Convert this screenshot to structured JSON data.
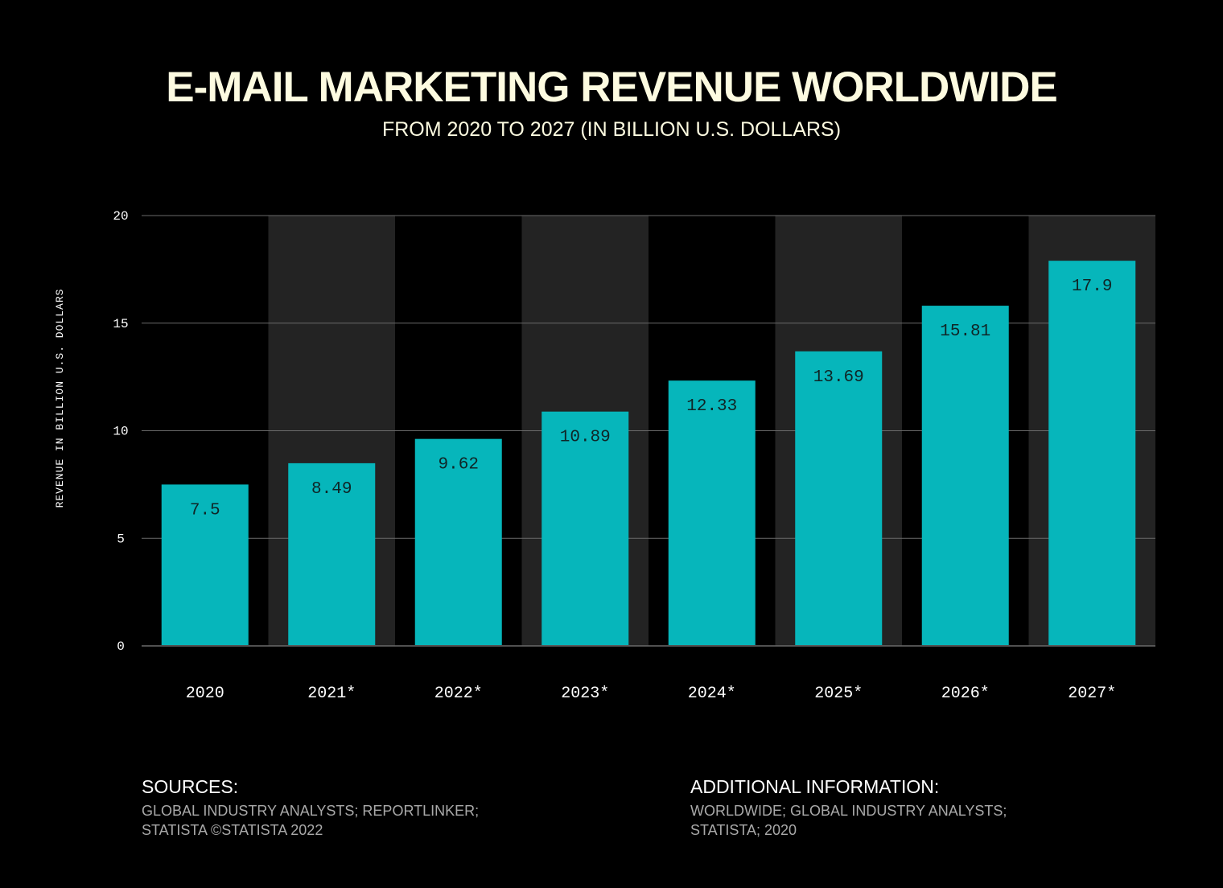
{
  "chart_data": {
    "type": "bar",
    "title": "E-MAIL MARKETING REVENUE WORLDWIDE",
    "subtitle": "FROM 2020 TO 2027 (IN BILLION U.S. DOLLARS)",
    "ylabel": "REVENUE IN BILLION U.S. DOLLARS",
    "xlabel": "",
    "categories": [
      "2020",
      "2021*",
      "2022*",
      "2023*",
      "2024*",
      "2025*",
      "2026*",
      "2027*"
    ],
    "values": [
      7.5,
      8.49,
      9.62,
      10.89,
      12.33,
      13.69,
      15.81,
      17.9
    ],
    "value_labels": [
      "7.5",
      "8.49",
      "9.62",
      "10.89",
      "12.33",
      "13.69",
      "15.81",
      "17.9"
    ],
    "ylim": [
      0,
      20
    ],
    "yticks": [
      0,
      5,
      10,
      15,
      20
    ],
    "grid": true,
    "colors": {
      "bar": "#06b6bb",
      "band": "#232323",
      "grid": "#6a6a6a",
      "background": "#000000",
      "title": "#fdfbe0"
    }
  },
  "footer": {
    "sources_heading": "SOURCES:",
    "sources_line1": "GLOBAL INDUSTRY ANALYSTS; REPORTLINKER;",
    "sources_line2": "STATISTA ©STATISTA 2022",
    "additional_heading": "ADDITIONAL INFORMATION:",
    "additional_line1": "WORLDWIDE; GLOBAL INDUSTRY ANALYSTS;",
    "additional_line2": "STATISTA; 2020"
  }
}
